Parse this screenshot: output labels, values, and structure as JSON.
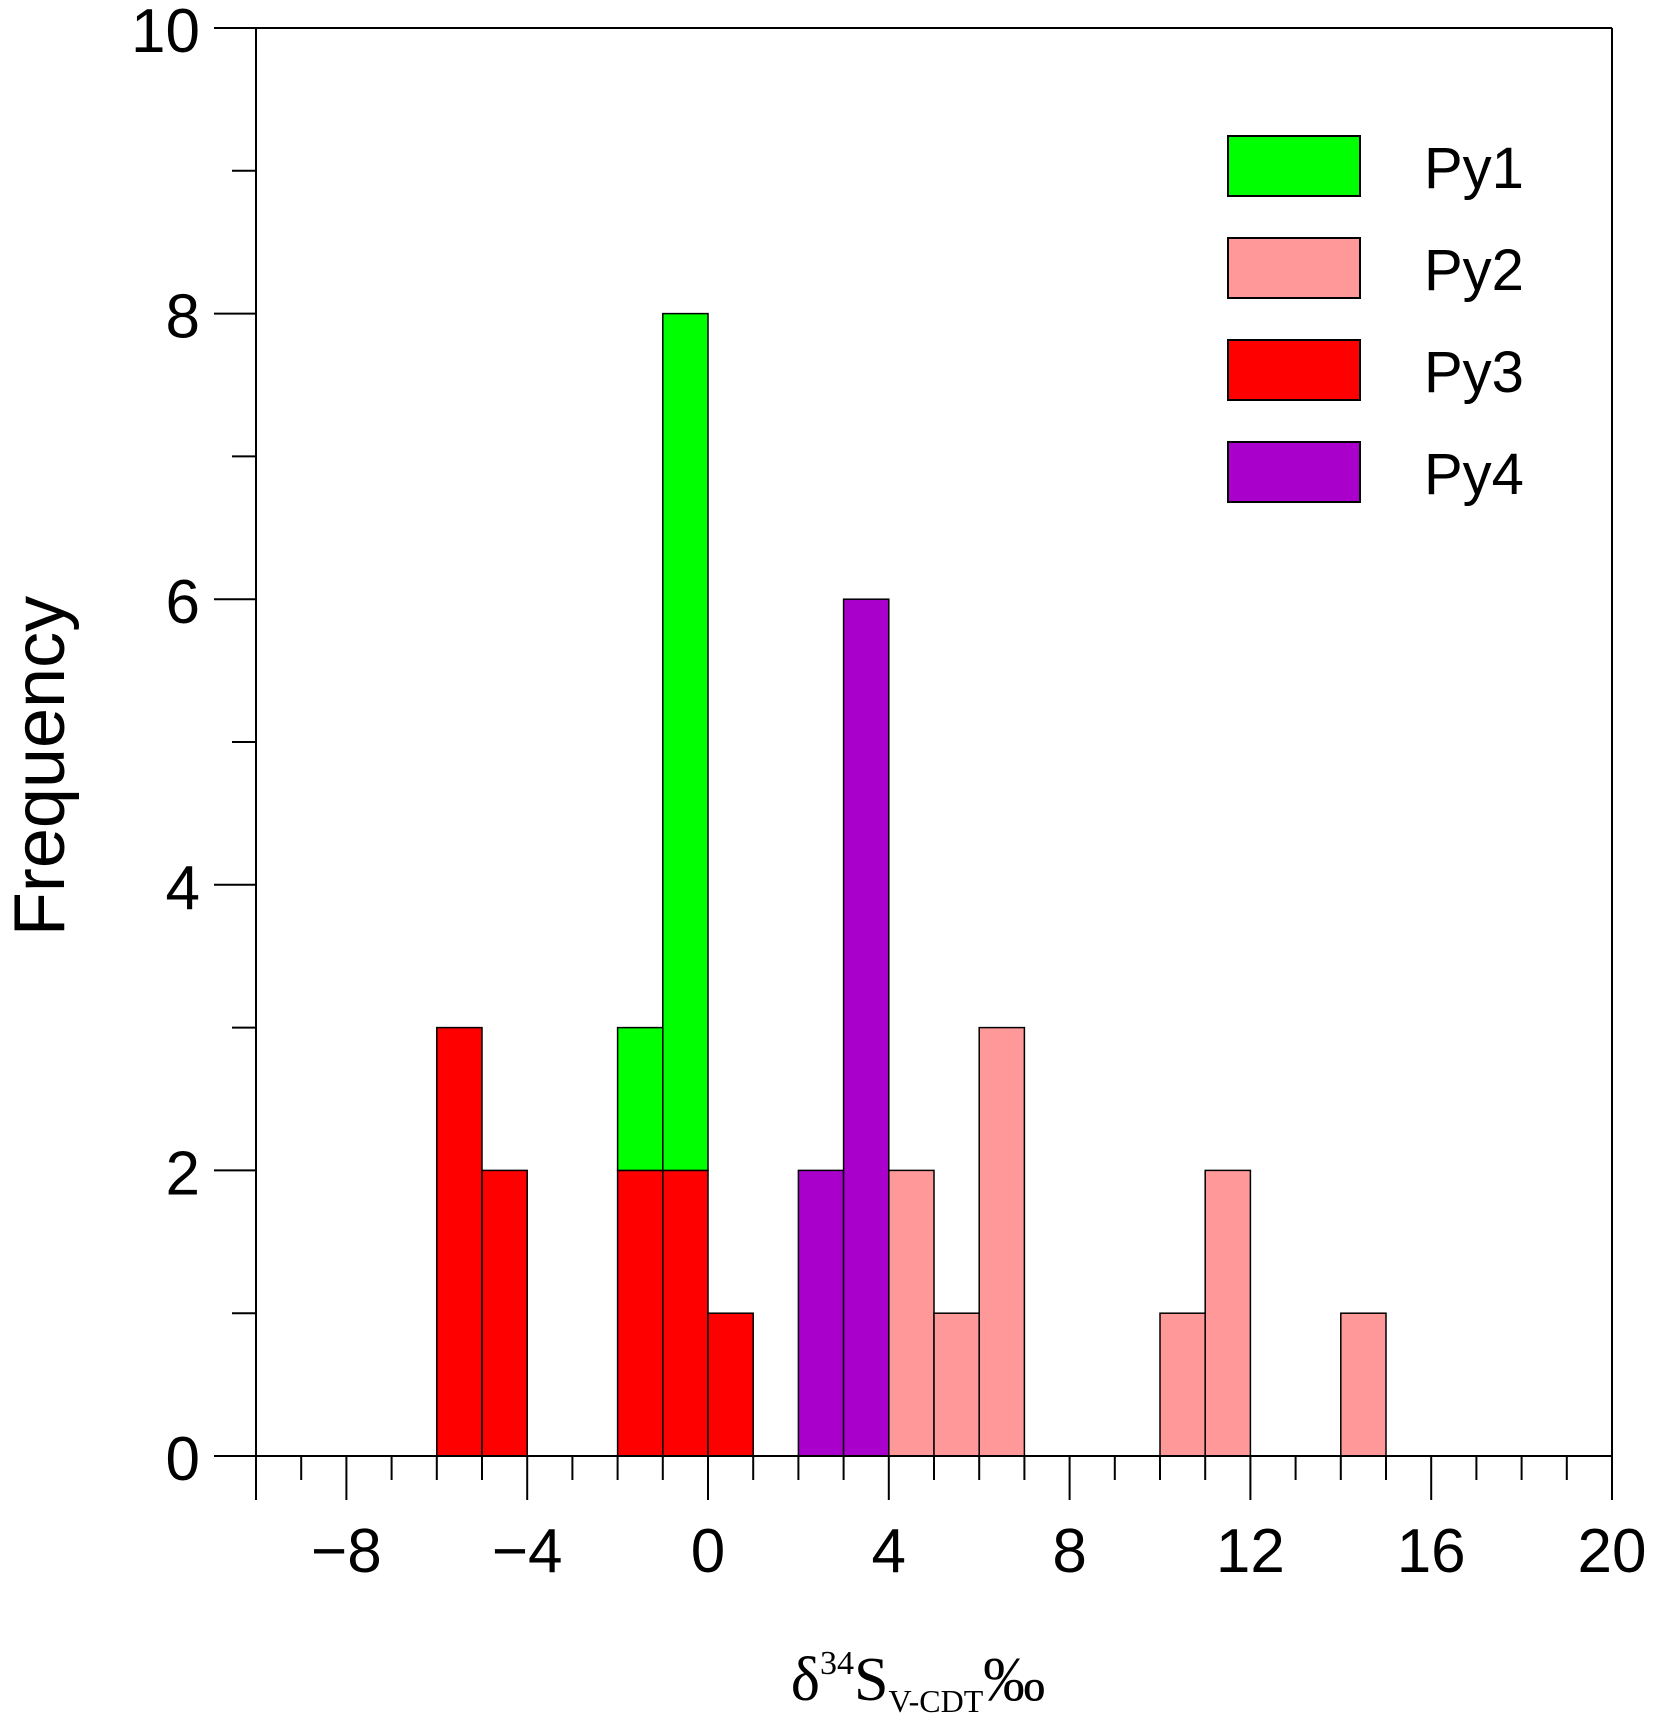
{
  "chart_data": {
    "type": "bar",
    "stacked": true,
    "bin_width": 1,
    "xlabel": {
      "delta": "δ",
      "superscript": "34",
      "element": "S",
      "subscript": "V-CDT",
      "unit": "‰"
    },
    "ylabel": "Frequency",
    "xlim": [
      -10,
      20
    ],
    "ylim": [
      0,
      10
    ],
    "x_ticks": [
      -8,
      -4,
      0,
      4,
      8,
      12,
      16,
      20
    ],
    "x_tick_labels": [
      "−8",
      "−4",
      "0",
      "4",
      "8",
      "12",
      "16",
      "20"
    ],
    "y_ticks": [
      0,
      2,
      4,
      6,
      8,
      10
    ],
    "y_tick_labels": [
      "0",
      "2",
      "4",
      "6",
      "8",
      "10"
    ],
    "legend_position": "top-right",
    "series": [
      {
        "name": "Py1",
        "color": "#00ff00",
        "bins": [
          {
            "x0": -2,
            "count": 1
          },
          {
            "x0": -1,
            "count": 6
          }
        ]
      },
      {
        "name": "Py2",
        "color": "#ff9999",
        "bins": [
          {
            "x0": 4,
            "count": 2
          },
          {
            "x0": 5,
            "count": 1
          },
          {
            "x0": 6,
            "count": 3
          },
          {
            "x0": 10,
            "count": 1
          },
          {
            "x0": 11,
            "count": 2
          },
          {
            "x0": 14,
            "count": 1
          }
        ]
      },
      {
        "name": "Py3",
        "color": "#ff0000",
        "bins": [
          {
            "x0": -6,
            "count": 3
          },
          {
            "x0": -5,
            "count": 2
          },
          {
            "x0": -2,
            "count": 2
          },
          {
            "x0": -1,
            "count": 2
          },
          {
            "x0": 0,
            "count": 1
          }
        ]
      },
      {
        "name": "Py4",
        "color": "#aa00cc",
        "bins": [
          {
            "x0": 2,
            "count": 2
          },
          {
            "x0": 3,
            "count": 6
          }
        ]
      }
    ]
  }
}
